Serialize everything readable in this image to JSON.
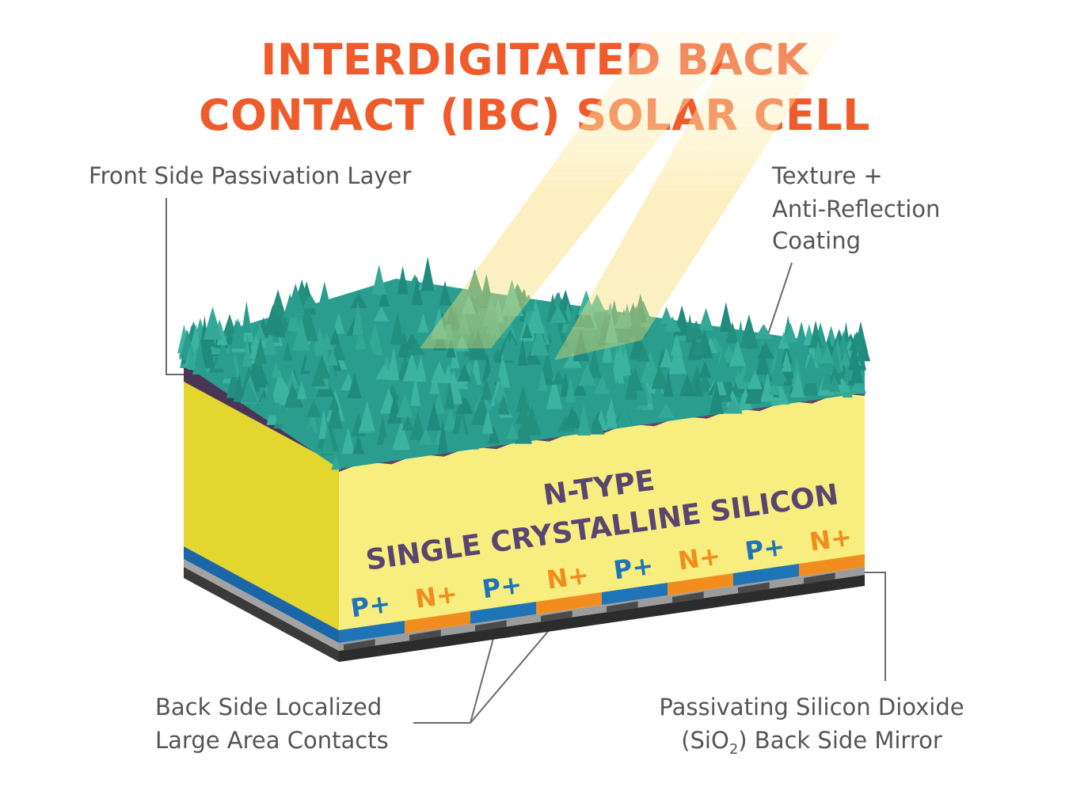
{
  "title": {
    "line1": "INTERDIGITATED BACK",
    "line2": "CONTACT (IBC) SOLAR CELL"
  },
  "labels": {
    "front_passivation": "Front Side Passivation Layer",
    "texture_line1": "Texture +",
    "texture_line2": "Anti-Reflection",
    "texture_line3": "Coating",
    "back_contacts_line1": "Back Side Localized",
    "back_contacts_line2": "Large Area Contacts",
    "mirror_line1": "Passivating Silicon Dioxide",
    "mirror_line2_pre": "(SiO",
    "mirror_line2_sub": "2",
    "mirror_line2_post": ") Back Side Mirror"
  },
  "bulk": {
    "line1": "N-TYPE",
    "line2": "SINGLE CRYSTALLINE SILICON"
  },
  "contacts": [
    "P+",
    "N+",
    "P+",
    "N+",
    "P+",
    "N+",
    "P+",
    "N+"
  ],
  "colors": {
    "title": "#ef5b2b",
    "texture": "#2a9d8f",
    "passivation": "#5b4768",
    "silicon_front": "#f7ee7f",
    "silicon_side": "#e3d62e",
    "p_contact": "#1f74b8",
    "n_contact": "#f18d1f",
    "oxide": "#9c9c9c",
    "metal": "#2c2c2c"
  }
}
